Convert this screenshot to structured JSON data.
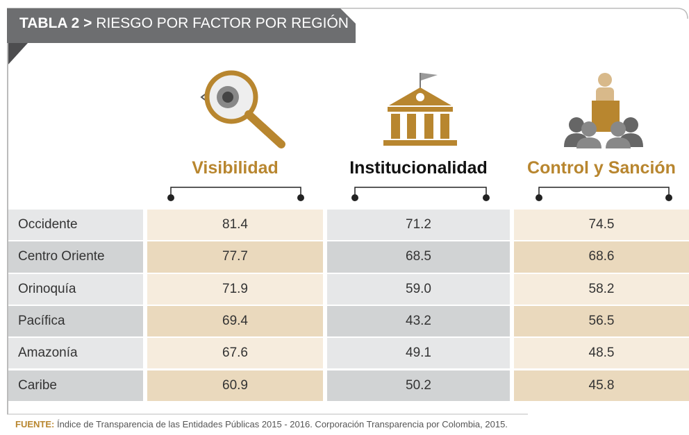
{
  "header": {
    "label": "TABLA 2 >",
    "title": "RIESGO POR FACTOR POR REGIÓN"
  },
  "table": {
    "columns": [
      "Visibilidad",
      "Institucionalidad",
      "Control y Sanción"
    ],
    "rows": [
      [
        "Occidente",
        "81.4",
        "71.2",
        "74.5"
      ],
      [
        "Centro Oriente",
        "77.7",
        "68.5",
        "68.6"
      ],
      [
        "Orinoquía",
        "71.9",
        "59.0",
        "58.2"
      ],
      [
        "Pacífica",
        "69.4",
        "43.2",
        "56.5"
      ],
      [
        "Amazonía",
        "67.6",
        "49.1",
        "48.5"
      ],
      [
        "Caribe",
        "60.9",
        "50.2",
        "45.8"
      ]
    ]
  },
  "footer": {
    "label": "FUENTE:",
    "text": "Índice de Transparencia de las Entidades Públicas 2015 - 2016. Corporación Transparencia por Colombia, 2015."
  }
}
